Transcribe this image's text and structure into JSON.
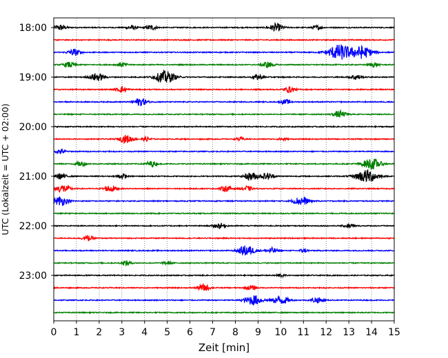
{
  "chart_data": {
    "type": "line",
    "title": "",
    "xlabel": "Zeit  [min]",
    "ylabel": "UTC (Lokalzeit = UTC + 02:00)",
    "xlim": [
      0,
      15
    ],
    "x_ticks": [
      0,
      1,
      2,
      3,
      4,
      5,
      6,
      7,
      8,
      9,
      10,
      11,
      12,
      13,
      14,
      15
    ],
    "x_tick_labels": [
      "0",
      "1",
      "2",
      "3",
      "4",
      "5",
      "6",
      "7",
      "8",
      "9",
      "10",
      "11",
      "12",
      "13",
      "14",
      "15"
    ],
    "y_tick_labels": [
      "18:00",
      "19:00",
      "20:00",
      "21:00",
      "22:00",
      "23:00"
    ],
    "y_tick_trace_index": [
      0,
      4,
      8,
      12,
      16,
      20
    ],
    "vertical_grid": "dotted",
    "trace_minutes": 15,
    "start_time": "18:00",
    "color_cycle": [
      "#000000",
      "#ff0000",
      "#0000ff",
      "#008000"
    ],
    "traces": [
      {
        "time": "18:00",
        "color": "#000000",
        "bursts": [
          [
            0.3,
            0.1
          ],
          [
            3.4,
            0.08
          ],
          [
            4.3,
            0.09
          ],
          [
            9.8,
            0.14
          ],
          [
            11.6,
            0.07
          ]
        ]
      },
      {
        "time": "18:15",
        "color": "#ff0000",
        "bursts": []
      },
      {
        "time": "18:30",
        "color": "#0000ff",
        "bursts": [
          [
            0.9,
            0.12
          ],
          [
            12.6,
            0.28
          ],
          [
            13.6,
            0.22
          ]
        ]
      },
      {
        "time": "18:45",
        "color": "#008000",
        "bursts": [
          [
            0.7,
            0.1
          ],
          [
            3.0,
            0.08
          ],
          [
            9.4,
            0.11
          ],
          [
            14.1,
            0.08
          ]
        ]
      },
      {
        "time": "19:00",
        "color": "#000000",
        "bursts": [
          [
            1.9,
            0.14
          ],
          [
            4.9,
            0.22
          ],
          [
            9.0,
            0.09
          ],
          [
            13.3,
            0.1
          ]
        ]
      },
      {
        "time": "19:15",
        "color": "#ff0000",
        "bursts": [
          [
            3.0,
            0.1
          ],
          [
            10.4,
            0.1
          ]
        ]
      },
      {
        "time": "19:30",
        "color": "#0000ff",
        "bursts": [
          [
            3.8,
            0.14
          ],
          [
            10.2,
            0.08
          ]
        ]
      },
      {
        "time": "19:45",
        "color": "#008000",
        "bursts": [
          [
            12.6,
            0.12
          ]
        ]
      },
      {
        "time": "20:00",
        "color": "#000000",
        "bursts": []
      },
      {
        "time": "20:15",
        "color": "#ff0000",
        "bursts": [
          [
            3.2,
            0.14
          ],
          [
            4.1,
            0.07
          ],
          [
            8.2,
            0.06
          ],
          [
            10.1,
            0.05
          ]
        ]
      },
      {
        "time": "20:30",
        "color": "#0000ff",
        "bursts": [
          [
            0.3,
            0.08
          ]
        ]
      },
      {
        "time": "20:45",
        "color": "#008000",
        "bursts": [
          [
            1.2,
            0.09
          ],
          [
            4.3,
            0.1
          ],
          [
            14.0,
            0.2
          ]
        ]
      },
      {
        "time": "21:00",
        "color": "#000000",
        "bursts": [
          [
            0.3,
            0.1
          ],
          [
            3.0,
            0.08
          ],
          [
            8.7,
            0.14
          ],
          [
            9.4,
            0.12
          ],
          [
            13.8,
            0.24
          ]
        ]
      },
      {
        "time": "21:15",
        "color": "#ff0000",
        "bursts": [
          [
            0.4,
            0.14
          ],
          [
            2.5,
            0.12
          ],
          [
            7.6,
            0.1
          ],
          [
            8.5,
            0.09
          ]
        ]
      },
      {
        "time": "21:30",
        "color": "#0000ff",
        "bursts": [
          [
            0.3,
            0.16
          ],
          [
            10.9,
            0.16
          ]
        ]
      },
      {
        "time": "21:45",
        "color": "#008000",
        "bursts": []
      },
      {
        "time": "22:00",
        "color": "#000000",
        "bursts": [
          [
            7.3,
            0.1
          ],
          [
            13.0,
            0.08
          ]
        ]
      },
      {
        "time": "22:15",
        "color": "#ff0000",
        "bursts": [
          [
            1.5,
            0.1
          ]
        ]
      },
      {
        "time": "22:30",
        "color": "#0000ff",
        "bursts": [
          [
            8.5,
            0.18
          ],
          [
            9.6,
            0.1
          ],
          [
            11.0,
            0.06
          ]
        ]
      },
      {
        "time": "22:45",
        "color": "#008000",
        "bursts": [
          [
            3.2,
            0.08
          ],
          [
            5.0,
            0.06
          ]
        ]
      },
      {
        "time": "23:00",
        "color": "#000000",
        "bursts": [
          [
            10.0,
            0.06
          ]
        ]
      },
      {
        "time": "23:15",
        "color": "#ff0000",
        "bursts": [
          [
            6.6,
            0.12
          ],
          [
            8.7,
            0.08
          ]
        ]
      },
      {
        "time": "23:30",
        "color": "#0000ff",
        "bursts": [
          [
            8.8,
            0.18
          ],
          [
            10.0,
            0.16
          ],
          [
            11.6,
            0.1
          ]
        ]
      },
      {
        "time": "23:45",
        "color": "#008000",
        "bursts": []
      }
    ]
  }
}
